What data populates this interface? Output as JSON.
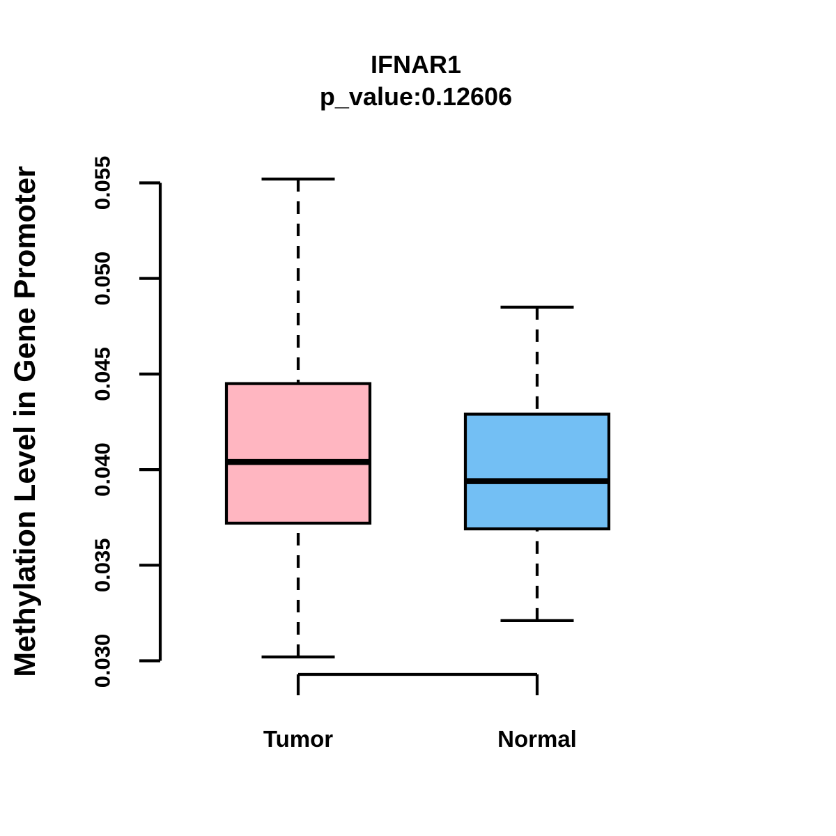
{
  "chart_data": {
    "type": "boxplot",
    "title": "IFNAR1",
    "subtitle": "p_value:0.12606",
    "ylabel": "Methylation Level in Gene Promoter",
    "xlabel": "",
    "categories": [
      "Tumor",
      "Normal"
    ],
    "series": [
      {
        "name": "Tumor",
        "fill": "#FFB6C1",
        "whisker_low": 0.0302,
        "q1": 0.0372,
        "median": 0.0404,
        "q3": 0.0445,
        "whisker_high": 0.0552
      },
      {
        "name": "Normal",
        "fill": "#73BFF4",
        "whisker_low": 0.0321,
        "q1": 0.0369,
        "median": 0.0394,
        "q3": 0.0429,
        "whisker_high": 0.0485
      }
    ],
    "ytick_values": [
      0.03,
      0.035,
      0.04,
      0.045,
      0.05,
      0.055
    ],
    "ytick_labels": [
      "0.030",
      "0.035",
      "0.040",
      "0.045",
      "0.050",
      "0.055"
    ],
    "ylim": [
      0.0285,
      0.0557
    ],
    "grid": false,
    "legend": "none",
    "whisker_style": "dashed",
    "axis_color": "#000000",
    "background_color": "#FFFFFF"
  }
}
